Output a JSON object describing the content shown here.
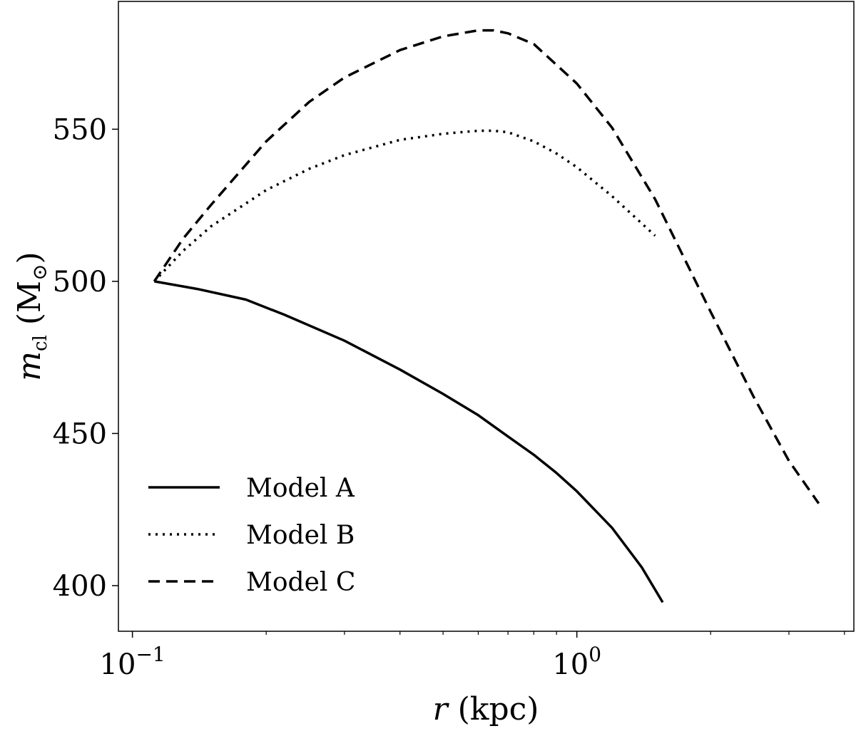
{
  "chart_data": {
    "type": "line",
    "xscale": "log",
    "xlim": [
      0.093,
      4.2
    ],
    "ylim": [
      385,
      592
    ],
    "grid": false,
    "legend_position": "lower-left",
    "xlabel": {
      "var": "r",
      "unit": "(kpc)"
    },
    "ylabel": {
      "var": "m",
      "sub": "cl",
      "unit_open": "(M",
      "unit_sub": "⊙",
      "unit_close": ")"
    },
    "xticks": [
      {
        "value": 0.1,
        "base": "10",
        "exp": "−1"
      },
      {
        "value": 1,
        "base": "10",
        "exp": "0"
      }
    ],
    "xminor": [
      0.2,
      0.3,
      0.4,
      0.5,
      0.6,
      0.7,
      0.8,
      0.9,
      2,
      3,
      4
    ],
    "yticks": [
      {
        "value": 400,
        "label": "400"
      },
      {
        "value": 450,
        "label": "450"
      },
      {
        "value": 500,
        "label": "500"
      },
      {
        "value": 550,
        "label": "550"
      }
    ],
    "series": [
      {
        "name": "Model A",
        "style": "solid",
        "x": [
          0.112,
          0.14,
          0.18,
          0.22,
          0.3,
          0.4,
          0.5,
          0.6,
          0.7,
          0.8,
          0.9,
          1.0,
          1.2,
          1.4,
          1.56
        ],
        "y": [
          500,
          497.5,
          494,
          489,
          480.5,
          471,
          463,
          456,
          449,
          443,
          437,
          431,
          419,
          406,
          394.5
        ]
      },
      {
        "name": "Model B",
        "style": "dotted",
        "x": [
          0.112,
          0.13,
          0.15,
          0.2,
          0.25,
          0.3,
          0.4,
          0.5,
          0.6,
          0.65,
          0.7,
          0.8,
          0.9,
          1.0,
          1.2,
          1.5
        ],
        "y": [
          500,
          510,
          518,
          530,
          537,
          541.5,
          546.5,
          548.5,
          549.5,
          549.5,
          549,
          546,
          542,
          537.5,
          528,
          515
        ]
      },
      {
        "name": "Model C",
        "style": "dashed",
        "x": [
          0.112,
          0.13,
          0.15,
          0.2,
          0.25,
          0.3,
          0.4,
          0.5,
          0.6,
          0.65,
          0.7,
          0.8,
          1.0,
          1.2,
          1.5,
          2.0,
          2.5,
          3.0,
          3.5
        ],
        "y": [
          500,
          514,
          525,
          546,
          559,
          567,
          576,
          580.5,
          582.5,
          582.5,
          581.5,
          578,
          565,
          550.5,
          527,
          490,
          462,
          441,
          427
        ]
      }
    ]
  }
}
